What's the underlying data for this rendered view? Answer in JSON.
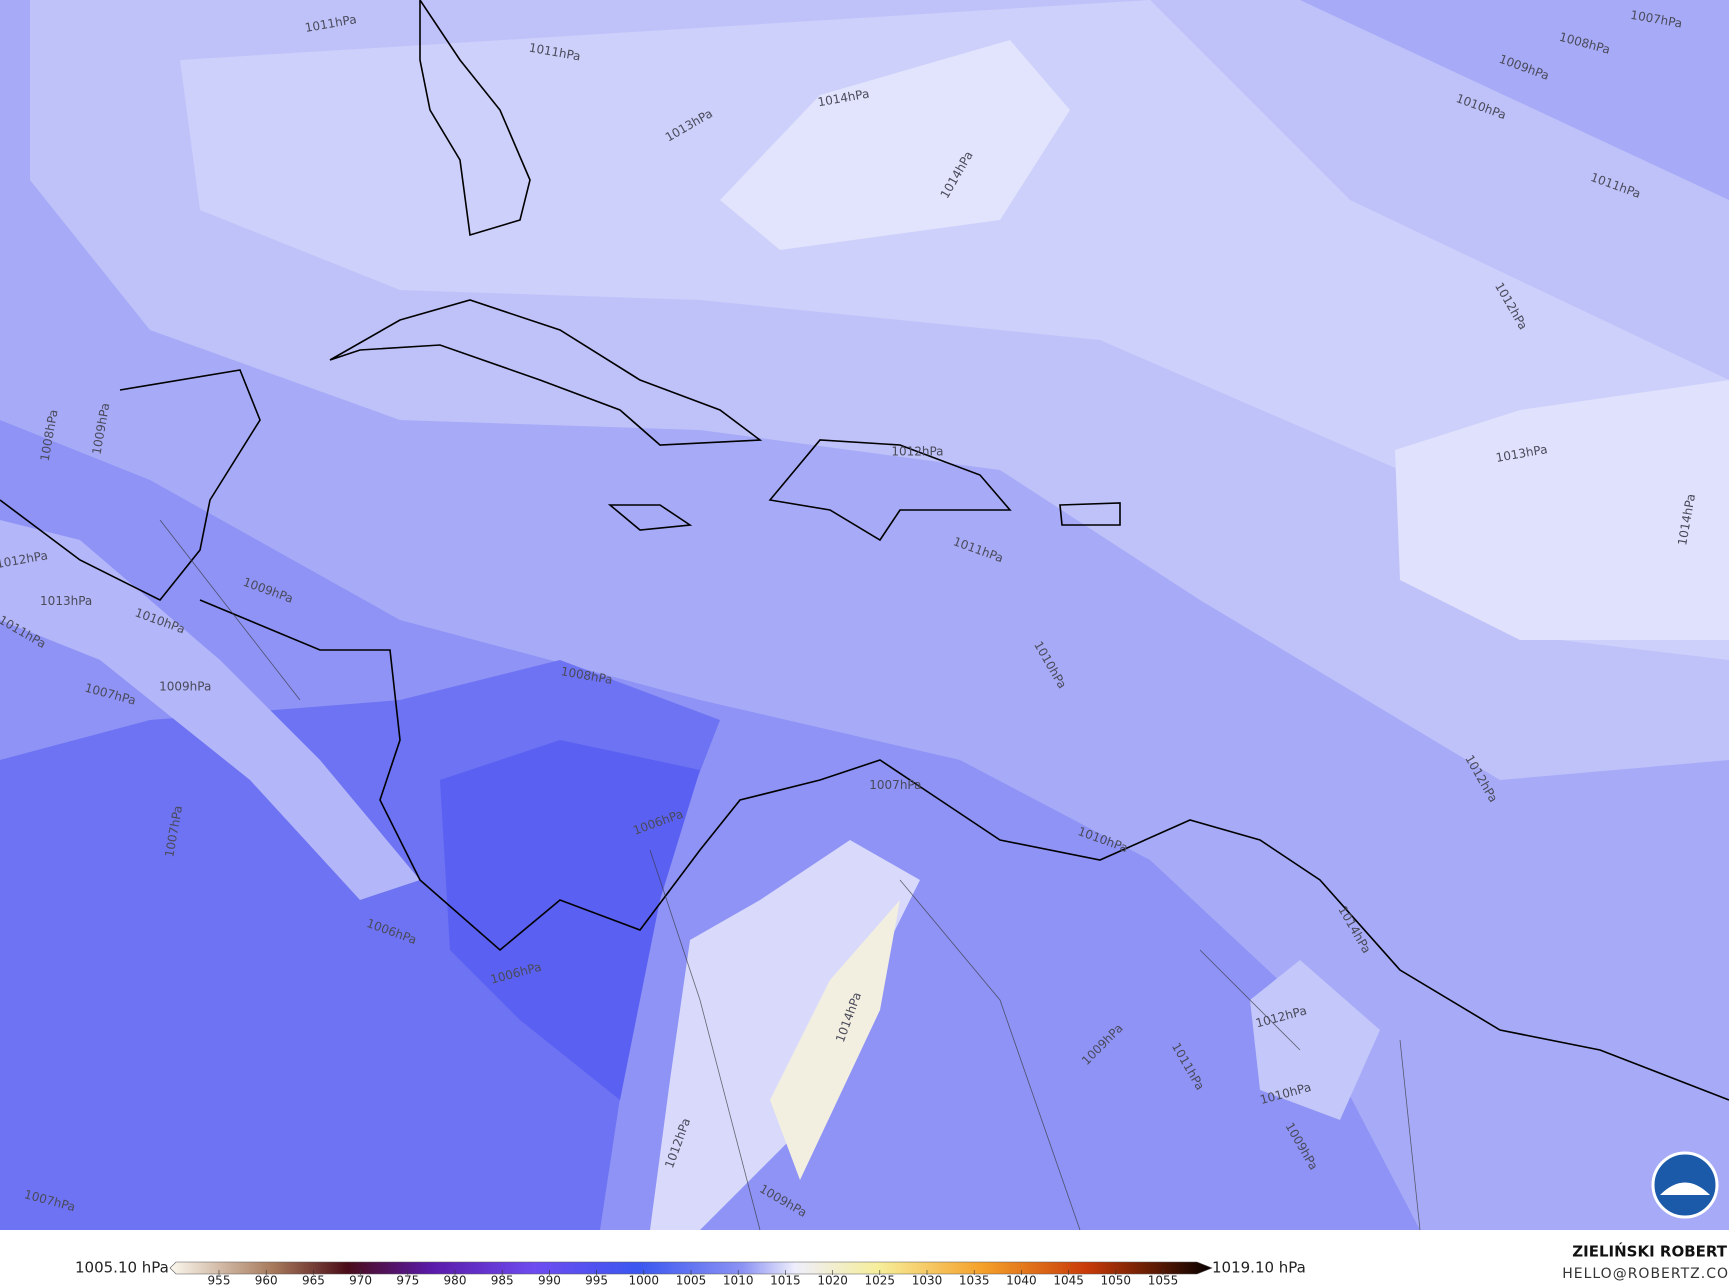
{
  "map": {
    "contour_labels": [
      "1011hPa",
      "1011hPa",
      "1013hPa",
      "1014hPa",
      "1014hPa",
      "1007hPa",
      "1008hPa",
      "1009hPa",
      "1010hPa",
      "1011hPa",
      "1012hPa",
      "1013hPa",
      "1014hPa",
      "1012hPa",
      "1008hPa",
      "1009hPa",
      "1012hPa",
      "1013hPa",
      "1011hPa",
      "1009hPa",
      "1010hPa",
      "1009hPa",
      "1007hPa",
      "1007hPa",
      "1012hPa",
      "1011hPa",
      "1010hPa",
      "1008hPa",
      "1006hPa",
      "1007hPa",
      "1010hPa",
      "1006hPa",
      "1006hPa",
      "1007hPa",
      "1012hPa",
      "1009hPa",
      "1011hPa",
      "1010hPa",
      "1009hPa",
      "1014hPa",
      "1009hPa",
      "1012hPa",
      "1014hPa"
    ],
    "colorbar": {
      "min_label": "1005.10 hPa",
      "max_label": "1019.10 hPa",
      "ticks": [
        955,
        960,
        965,
        970,
        975,
        980,
        985,
        990,
        995,
        1000,
        1005,
        1010,
        1015,
        1020,
        1025,
        1030,
        1035,
        1040,
        1045,
        1050,
        1055
      ]
    },
    "author": "ZIELIŃSKI ROBERT",
    "email": "HELLO@ROBERTZ.CO"
  }
}
